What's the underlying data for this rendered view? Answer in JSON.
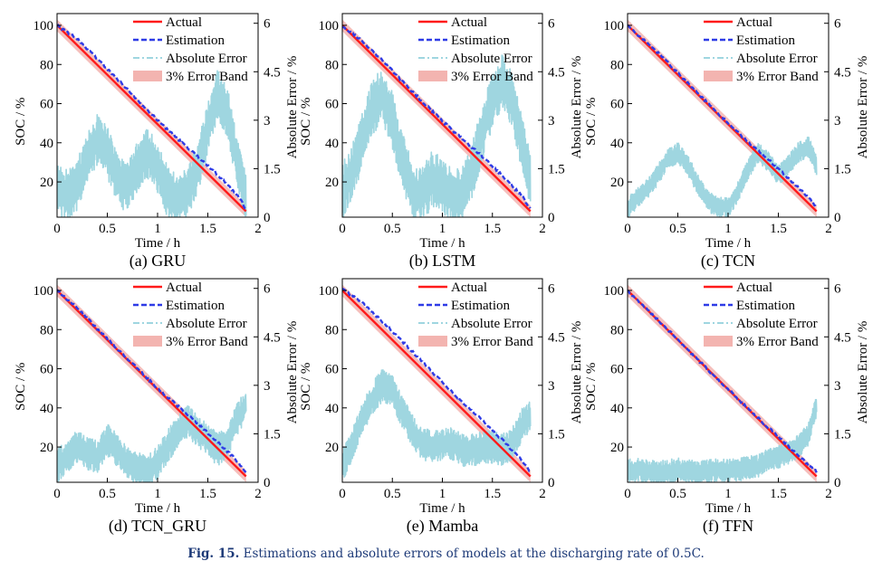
{
  "caption": {
    "label": "Fig. 15.",
    "text": "Estimations and absolute errors of models at the discharging rate of 0.5C."
  },
  "colors": {
    "actual": "#ff1a1a",
    "estimation": "#2e3be6",
    "absolute_error": "#9fd6e0",
    "error_band": "#f3b4b0"
  },
  "legend": [
    "Actual",
    "Estimation",
    "Absolute Error",
    "3% Error Band"
  ],
  "chart_data": [
    {
      "type": "line",
      "subtitle": "(a) GRU",
      "xlabel": "Time / h",
      "ylabel": "SOC / %",
      "y2label": "Absolute Error / %",
      "xlim": [
        0,
        2
      ],
      "ylim": [
        2,
        106
      ],
      "y2lim": [
        0,
        6.3
      ],
      "xticks": [
        "0",
        "0.5",
        "1",
        "1.5",
        "2"
      ],
      "yticks": [
        "20",
        "40",
        "60",
        "80",
        "100"
      ],
      "y2ticks": [
        "0",
        "1.5",
        "3",
        "4.5",
        "6"
      ],
      "legend_position": "top-right",
      "grid": false,
      "series": [
        {
          "name": "Actual",
          "axis": "left",
          "x": [
            0,
            1.88
          ],
          "y": [
            100,
            5
          ]
        },
        {
          "name": "Estimation",
          "axis": "left",
          "x": [
            0,
            0.2,
            0.4,
            0.6,
            0.8,
            1.0,
            1.2,
            1.4,
            1.6,
            1.8,
            1.88
          ],
          "y": [
            100,
            93,
            83,
            72.5,
            62,
            51.5,
            42,
            33,
            23.5,
            13,
            6
          ]
        },
        {
          "name": "Absolute Error",
          "axis": "right",
          "noise": 0.55,
          "x": [
            0,
            0.1,
            0.2,
            0.3,
            0.4,
            0.5,
            0.6,
            0.7,
            0.8,
            0.9,
            1.0,
            1.1,
            1.2,
            1.3,
            1.4,
            1.5,
            1.6,
            1.7,
            1.8,
            1.88
          ],
          "y": [
            0.8,
            0.7,
            1.0,
            1.8,
            2.4,
            2.0,
            1.2,
            0.9,
            1.6,
            2.0,
            1.5,
            0.8,
            0.6,
            0.8,
            1.5,
            2.8,
            3.8,
            3.2,
            1.6,
            0.6
          ]
        }
      ]
    },
    {
      "type": "line",
      "subtitle": "(b) LSTM",
      "xlabel": "Time / h",
      "ylabel": "SOC / %",
      "y2label": "Absolute Error / %",
      "xlim": [
        0,
        2
      ],
      "ylim": [
        2,
        106
      ],
      "y2lim": [
        0,
        6.3
      ],
      "xticks": [
        "0",
        "0.5",
        "1",
        "1.5",
        "2"
      ],
      "yticks": [
        "20",
        "40",
        "60",
        "80",
        "100"
      ],
      "y2ticks": [
        "0",
        "1.5",
        "3",
        "4.5",
        "6"
      ],
      "legend_position": "top-right",
      "grid": false,
      "series": [
        {
          "name": "Actual",
          "axis": "left",
          "x": [
            0,
            1.88
          ],
          "y": [
            100,
            5
          ]
        },
        {
          "name": "Estimation",
          "axis": "left",
          "x": [
            0,
            0.2,
            0.4,
            0.6,
            0.8,
            1.0,
            1.2,
            1.4,
            1.6,
            1.8,
            1.88
          ],
          "y": [
            99.5,
            92,
            82,
            71.5,
            61,
            51,
            42,
            33,
            23,
            12.5,
            6
          ]
        },
        {
          "name": "Absolute Error",
          "axis": "right",
          "noise": 0.6,
          "x": [
            0,
            0.1,
            0.2,
            0.3,
            0.4,
            0.5,
            0.6,
            0.7,
            0.8,
            0.9,
            1.0,
            1.1,
            1.2,
            1.3,
            1.4,
            1.5,
            1.6,
            1.7,
            1.8,
            1.88
          ],
          "y": [
            0.8,
            1.4,
            2.4,
            3.4,
            3.8,
            3.0,
            1.8,
            0.8,
            0.7,
            1.2,
            1.0,
            0.6,
            0.7,
            1.5,
            2.6,
            3.6,
            4.2,
            3.6,
            2.2,
            1.2
          ]
        }
      ]
    },
    {
      "type": "line",
      "subtitle": "(c) TCN",
      "xlabel": "Time / h",
      "ylabel": "SOC / %",
      "y2label": "Absolute Error / %",
      "xlim": [
        0,
        2
      ],
      "ylim": [
        2,
        106
      ],
      "y2lim": [
        0,
        6.3
      ],
      "xticks": [
        "0",
        "0.5",
        "1",
        "1.5",
        "2"
      ],
      "yticks": [
        "20",
        "40",
        "60",
        "80",
        "100"
      ],
      "y2ticks": [
        "0",
        "1.5",
        "3",
        "4.5",
        "6"
      ],
      "legend_position": "top-right",
      "grid": false,
      "series": [
        {
          "name": "Actual",
          "axis": "left",
          "x": [
            0,
            1.88
          ],
          "y": [
            100,
            5
          ]
        },
        {
          "name": "Estimation",
          "axis": "left",
          "x": [
            0,
            0.2,
            0.4,
            0.6,
            0.8,
            1.0,
            1.2,
            1.4,
            1.6,
            1.8,
            1.88
          ],
          "y": [
            99.5,
            91,
            81,
            70.5,
            60,
            50,
            40.5,
            31.5,
            22,
            12,
            7
          ]
        },
        {
          "name": "Absolute Error",
          "axis": "right",
          "noise": 0.22,
          "x": [
            0,
            0.1,
            0.2,
            0.3,
            0.4,
            0.5,
            0.6,
            0.7,
            0.8,
            0.9,
            1.0,
            1.1,
            1.2,
            1.3,
            1.4,
            1.5,
            1.6,
            1.7,
            1.8,
            1.88
          ],
          "y": [
            0.3,
            0.6,
            0.9,
            1.3,
            1.8,
            2.0,
            1.6,
            1.0,
            0.5,
            0.3,
            0.3,
            0.8,
            1.5,
            2.0,
            1.7,
            1.3,
            1.6,
            2.0,
            2.2,
            1.6
          ]
        }
      ]
    },
    {
      "type": "line",
      "subtitle": "(d) TCN_GRU",
      "xlabel": "Time / h",
      "ylabel": "SOC / %",
      "y2label": "Absolute Error / %",
      "xlim": [
        0,
        2
      ],
      "ylim": [
        2,
        106
      ],
      "y2lim": [
        0,
        6.3
      ],
      "xticks": [
        "0",
        "0.5",
        "1",
        "1.5",
        "2"
      ],
      "yticks": [
        "20",
        "40",
        "60",
        "80",
        "100"
      ],
      "y2ticks": [
        "0",
        "1.5",
        "3",
        "4.5",
        "6"
      ],
      "legend_position": "top-right",
      "grid": false,
      "series": [
        {
          "name": "Actual",
          "axis": "left",
          "x": [
            0,
            1.88
          ],
          "y": [
            100,
            5
          ]
        },
        {
          "name": "Estimation",
          "axis": "left",
          "x": [
            0,
            0.2,
            0.4,
            0.6,
            0.8,
            1.0,
            1.2,
            1.4,
            1.6,
            1.8,
            1.88
          ],
          "y": [
            100,
            91,
            80.5,
            70,
            60,
            50,
            41,
            32,
            22.5,
            12.5,
            7
          ]
        },
        {
          "name": "Absolute Error",
          "axis": "right",
          "noise": 0.35,
          "x": [
            0,
            0.1,
            0.2,
            0.3,
            0.4,
            0.5,
            0.6,
            0.7,
            0.8,
            0.9,
            1.0,
            1.1,
            1.2,
            1.3,
            1.4,
            1.5,
            1.6,
            1.7,
            1.8,
            1.88
          ],
          "y": [
            0.5,
            0.8,
            1.1,
            0.9,
            0.8,
            1.3,
            1.0,
            0.6,
            0.4,
            0.4,
            0.6,
            1.1,
            1.6,
            1.9,
            1.6,
            1.3,
            1.0,
            1.3,
            2.0,
            2.4
          ]
        }
      ]
    },
    {
      "type": "line",
      "subtitle": "(e) Mamba",
      "xlabel": "Time / h",
      "ylabel": "SOC / %",
      "y2label": "Absolute Error / %",
      "xlim": [
        0,
        2
      ],
      "ylim": [
        2,
        106
      ],
      "y2lim": [
        0,
        6.3
      ],
      "xticks": [
        "0",
        "0.5",
        "1",
        "1.5",
        "2"
      ],
      "yticks": [
        "20",
        "40",
        "60",
        "80",
        "100"
      ],
      "y2ticks": [
        "0",
        "1.5",
        "3",
        "4.5",
        "6"
      ],
      "legend_position": "top-right",
      "grid": false,
      "series": [
        {
          "name": "Actual",
          "axis": "left",
          "x": [
            0,
            1.88
          ],
          "y": [
            100,
            5
          ]
        },
        {
          "name": "Estimation",
          "axis": "left",
          "x": [
            0,
            0.2,
            0.4,
            0.6,
            0.8,
            1.0,
            1.2,
            1.4,
            1.6,
            1.8,
            1.88
          ],
          "y": [
            100.5,
            94,
            84,
            74,
            63.5,
            53,
            43,
            33.5,
            23.5,
            13,
            7.5
          ]
        },
        {
          "name": "Absolute Error",
          "axis": "right",
          "noise": 0.35,
          "x": [
            0,
            0.1,
            0.2,
            0.3,
            0.4,
            0.5,
            0.6,
            0.7,
            0.8,
            0.9,
            1.0,
            1.1,
            1.2,
            1.3,
            1.4,
            1.5,
            1.6,
            1.7,
            1.8,
            1.88
          ],
          "y": [
            0.5,
            1.2,
            2.0,
            2.6,
            3.0,
            2.8,
            2.2,
            1.6,
            1.2,
            1.1,
            1.2,
            1.2,
            1.0,
            1.0,
            1.1,
            1.1,
            1.0,
            1.2,
            1.8,
            2.0
          ]
        }
      ]
    },
    {
      "type": "line",
      "subtitle": "(f) TFN",
      "xlabel": "Time / h",
      "ylabel": "SOC / %",
      "y2label": "Absolute Error / %",
      "xlim": [
        0,
        2
      ],
      "ylim": [
        2,
        106
      ],
      "y2lim": [
        0,
        6.3
      ],
      "xticks": [
        "0",
        "0.5",
        "1",
        "1.5",
        "2"
      ],
      "yticks": [
        "20",
        "40",
        "60",
        "80",
        "100"
      ],
      "y2ticks": [
        "0",
        "1.5",
        "3",
        "4.5",
        "6"
      ],
      "legend_position": "top-right",
      "grid": false,
      "series": [
        {
          "name": "Actual",
          "axis": "left",
          "x": [
            0,
            1.88
          ],
          "y": [
            100,
            5
          ]
        },
        {
          "name": "Estimation",
          "axis": "left",
          "x": [
            0,
            0.2,
            0.4,
            0.6,
            0.8,
            1.0,
            1.2,
            1.4,
            1.6,
            1.8,
            1.88
          ],
          "y": [
            100,
            90,
            80,
            69.5,
            59.5,
            49.5,
            39.5,
            30,
            20.5,
            11,
            7.5
          ]
        },
        {
          "name": "Absolute Error",
          "axis": "right",
          "noise": 0.25,
          "x": [
            0,
            0.1,
            0.2,
            0.3,
            0.4,
            0.5,
            0.6,
            0.7,
            0.8,
            0.9,
            1.0,
            1.1,
            1.2,
            1.3,
            1.4,
            1.5,
            1.6,
            1.7,
            1.8,
            1.88
          ],
          "y": [
            0.35,
            0.4,
            0.35,
            0.3,
            0.35,
            0.4,
            0.35,
            0.3,
            0.35,
            0.4,
            0.35,
            0.4,
            0.45,
            0.5,
            0.7,
            0.8,
            0.9,
            1.1,
            1.5,
            2.4
          ]
        }
      ]
    }
  ]
}
